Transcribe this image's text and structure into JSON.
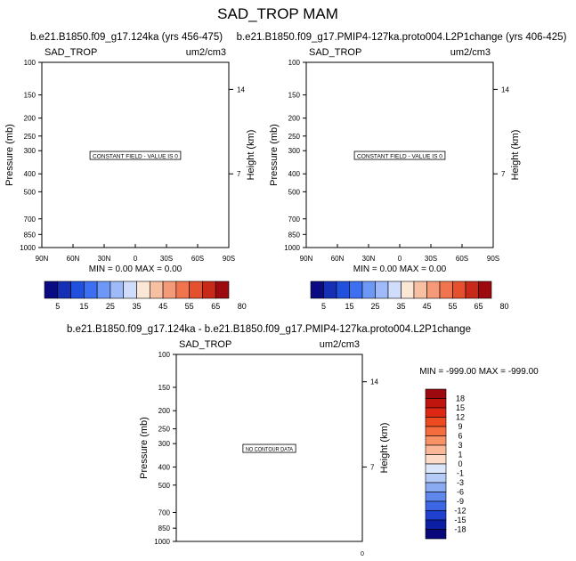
{
  "page": {
    "title": "SAD_TROP MAM",
    "diff_title": "b.e21.B1850.f09_g17.124ka - b.e21.B1850.f09_g17.PMIP4-127ka.proto004.L2P1change"
  },
  "chart_data": [
    {
      "type": "heatmap",
      "run_title": "b.e21.B1850.f09_g17.124ka (yrs 456-475)",
      "variable": "SAD_TROP",
      "units": "um2/cm3",
      "xlabel": "",
      "ylabel": "Pressure (mb)",
      "ylabel_right": "Height (km)",
      "x_ticks": [
        "90N",
        "60N",
        "30N",
        "0",
        "30S",
        "60S",
        "90S"
      ],
      "y_ticks": [
        "100",
        "150",
        "200",
        "250",
        "300",
        "400",
        "500",
        "700",
        "850",
        "1000"
      ],
      "y_log": true,
      "ylim": [
        1000,
        100
      ],
      "right_ticks": [
        "14",
        "7"
      ],
      "message": "CONSTANT FIELD - VALUE IS 0",
      "stats": "MIN =   0.00  MAX =   0.00",
      "colorbar": {
        "orientation": "horizontal",
        "labels": [
          "5",
          "15",
          "25",
          "35",
          "45",
          "55",
          "65",
          "80"
        ],
        "colors": [
          "#0a0a82",
          "#1530b4",
          "#2050dc",
          "#3c70f0",
          "#6d98f5",
          "#9ebaf8",
          "#cfdcfb",
          "#fbe7d6",
          "#f8c0a2",
          "#f59a78",
          "#f0744e",
          "#e5502e",
          "#c82a1a",
          "#9c0a10"
        ]
      }
    },
    {
      "type": "heatmap",
      "run_title": "b.e21.B1850.f09_g17.PMIP4-127ka.proto004.L2P1change (yrs 406-425)",
      "variable": "SAD_TROP",
      "units": "um2/cm3",
      "xlabel": "",
      "ylabel": "Pressure (mb)",
      "ylabel_right": "Height (km)",
      "x_ticks": [
        "90N",
        "60N",
        "30N",
        "0",
        "30S",
        "60S",
        "90S"
      ],
      "y_ticks": [
        "100",
        "150",
        "200",
        "250",
        "300",
        "400",
        "500",
        "700",
        "850",
        "1000"
      ],
      "y_log": true,
      "ylim": [
        1000,
        100
      ],
      "right_ticks": [
        "14",
        "7"
      ],
      "message": "CONSTANT FIELD - VALUE IS 0",
      "stats": "MIN =   0.00  MAX =   0.00",
      "colorbar": {
        "orientation": "horizontal",
        "labels": [
          "5",
          "15",
          "25",
          "35",
          "45",
          "55",
          "65",
          "80"
        ],
        "colors": [
          "#0a0a82",
          "#1530b4",
          "#2050dc",
          "#3c70f0",
          "#6d98f5",
          "#9ebaf8",
          "#cfdcfb",
          "#fbe7d6",
          "#f8c0a2",
          "#f59a78",
          "#f0744e",
          "#e5502e",
          "#c82a1a",
          "#9c0a10"
        ]
      }
    },
    {
      "type": "heatmap",
      "variable": "SAD_TROP",
      "units": "um2/cm3",
      "xlabel": "",
      "ylabel": "Pressure (mb)",
      "ylabel_right": "Height (km)",
      "x_ticks": [
        "0"
      ],
      "y_ticks": [
        "100",
        "150",
        "200",
        "250",
        "300",
        "400",
        "500",
        "700",
        "850",
        "1000"
      ],
      "y_log": true,
      "ylim": [
        1000,
        100
      ],
      "right_ticks": [
        "14",
        "7"
      ],
      "message": "NO CONTOUR DATA",
      "stats": "MIN = -999.00  MAX = -999.00",
      "colorbar": {
        "orientation": "vertical",
        "labels": [
          "18",
          "15",
          "12",
          "9",
          "6",
          "3",
          "1",
          "0",
          "-1",
          "-3",
          "-6",
          "-9",
          "-12",
          "-15",
          "-18"
        ],
        "colors": [
          "#9c0a10",
          "#c0140e",
          "#dc2814",
          "#ee4a22",
          "#f56c3e",
          "#f89266",
          "#fab898",
          "#fcdcc8",
          "#dce6fa",
          "#b4cbf7",
          "#8aabf2",
          "#5f88ec",
          "#3c66e4",
          "#2040d0",
          "#0c1ea4",
          "#08087a"
        ]
      }
    }
  ]
}
